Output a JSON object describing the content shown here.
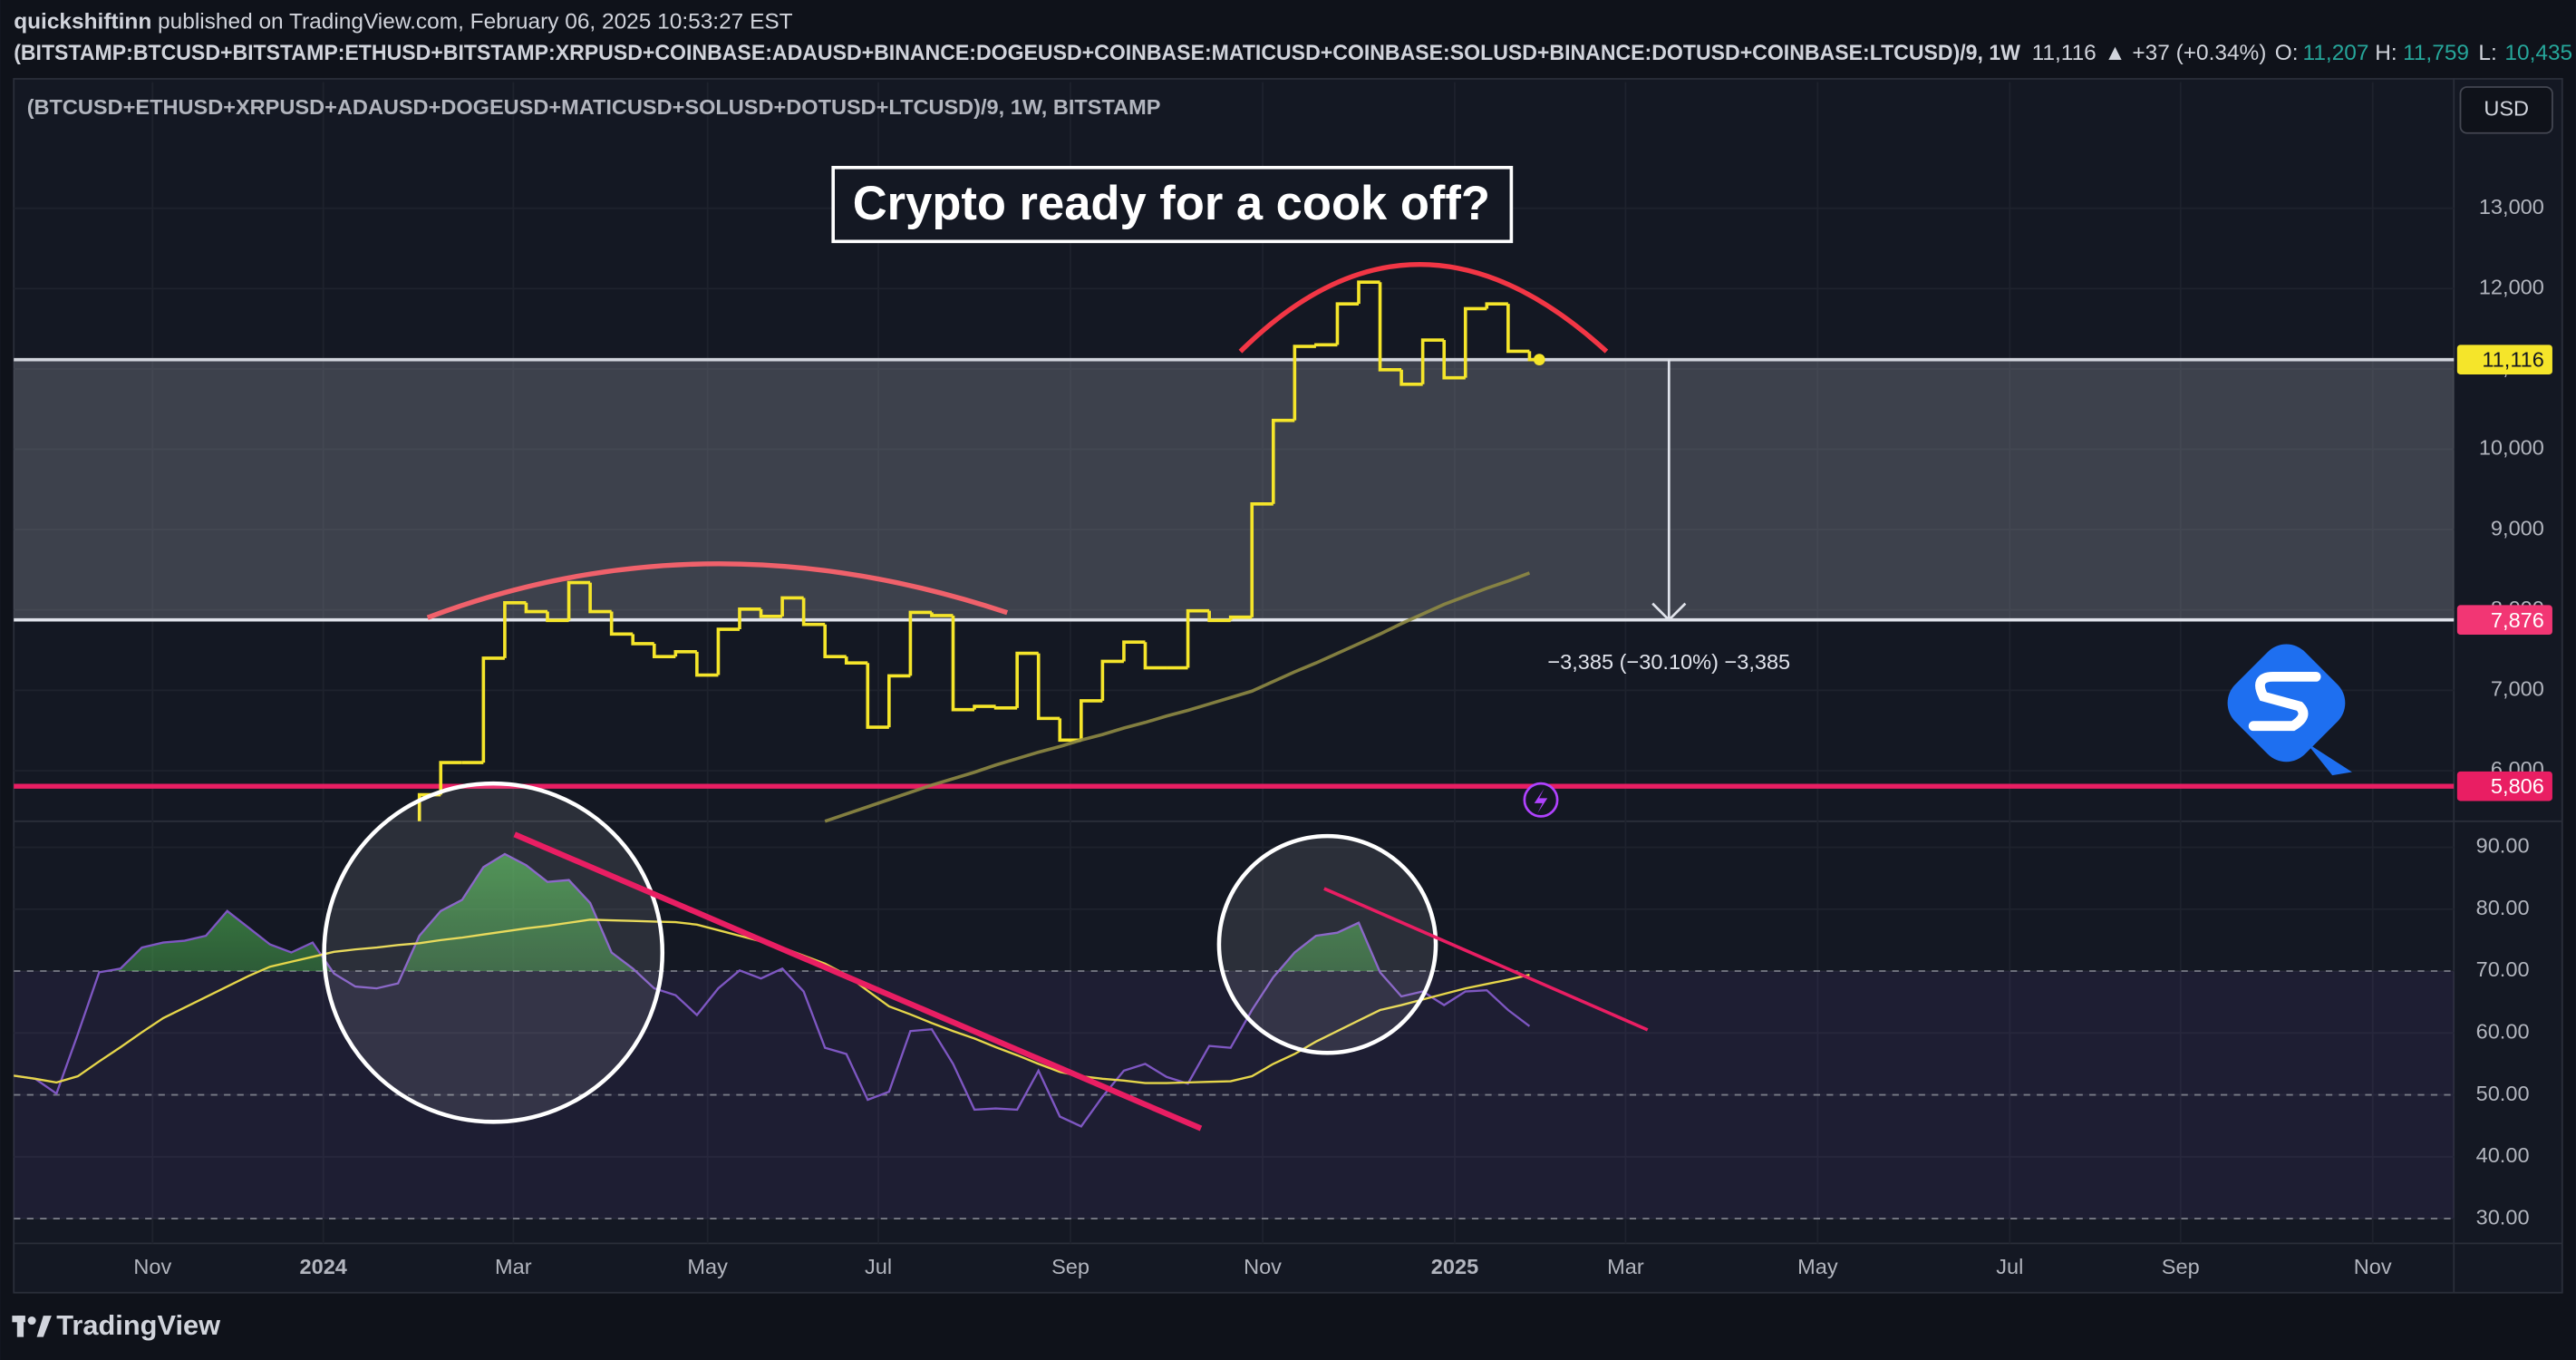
{
  "header": {
    "author": "quickshiftinn",
    "published": "published on TradingView.com, February 06, 2025 10:53:27 EST",
    "symbol": "(BITSTAMP:BTCUSD+BITSTAMP:ETHUSD+BITSTAMP:XRPUSD+COINBASE:ADAUSD+BINANCE:DOGEUSD+COINBASE:MATICUSD+COINBASE:SOLUSD+BINANCE:DOTUSD+COINBASE:LTCUSD)/9, 1W",
    "last": "11,116",
    "change": "▲ +37 (+0.34%)",
    "o_label": "O:",
    "o": "11,207",
    "h_label": "H:",
    "h": "11,759",
    "l_label": "L:",
    "l": "10,435"
  },
  "legend": "(BTCUSD+ETHUSD+XRPUSD+ADAUSD+DOGEUSD+MATICUSD+SOLUSD+DOTUSD+LTCUSD)/9, 1W, BITSTAMP",
  "currency": "USD",
  "brand": "TradingView",
  "chart_data": [
    {
      "type": "line",
      "step": true,
      "title": "Crypto ready for a cook off?",
      "xlim": [
        -19,
        95.3
      ],
      "xticks": [
        {
          "value": -12.5,
          "label": "Nov"
        },
        {
          "value": -4.5,
          "label": "2024"
        },
        {
          "value": 4.4,
          "label": "Mar"
        },
        {
          "value": 13.5,
          "label": "May"
        },
        {
          "value": 21.5,
          "label": "Jul"
        },
        {
          "value": 30.5,
          "label": "Sep"
        },
        {
          "value": 39.5,
          "label": "Nov"
        },
        {
          "value": 48.5,
          "label": "2025"
        },
        {
          "value": 56.5,
          "label": "Mar"
        },
        {
          "value": 65.5,
          "label": "May"
        },
        {
          "value": 74.5,
          "label": "Jul"
        },
        {
          "value": 82.5,
          "label": "Sep"
        },
        {
          "value": 91.5,
          "label": "Nov"
        }
      ],
      "ylim": [
        5370,
        14570
      ],
      "yticks": [
        {
          "value": 6000,
          "label": "6,000"
        },
        {
          "value": 7000,
          "label": "7,000"
        },
        {
          "value": 8000,
          "label": "8,000"
        },
        {
          "value": 9000,
          "label": "9,000"
        },
        {
          "value": 10000,
          "label": "10,000"
        },
        {
          "value": 11000,
          "label": "11,000"
        },
        {
          "value": 12000,
          "label": "12,000"
        },
        {
          "value": 13000,
          "label": "13,000"
        }
      ],
      "grid": true,
      "series": [
        {
          "color": "#f5e52a",
          "values": [
            5700,
            6100,
            6100,
            7400,
            8090,
            7980,
            7870,
            8340,
            7980,
            7700,
            7580,
            7420,
            7480,
            7190,
            7760,
            8010,
            7920,
            8150,
            7820,
            7420,
            7340,
            6540,
            7180,
            7970,
            7930,
            6760,
            6800,
            6780,
            7460,
            6650,
            6380,
            6870,
            7360,
            7600,
            7280,
            7280,
            7990,
            7870,
            7910,
            9320,
            10360,
            11280,
            11300,
            11810,
            12080,
            10990,
            10810,
            11360,
            10890,
            11750,
            11810,
            11220,
            11116
          ]
        },
        {
          "color": "#8e8a44",
          "values": [
            null,
            null,
            null,
            null,
            null,
            null,
            null,
            null,
            null,
            null,
            null,
            null,
            null,
            null,
            null,
            null,
            null,
            null,
            null,
            5370,
            5460,
            5550,
            5640,
            5730,
            5820,
            5900,
            5980,
            6070,
            6150,
            6230,
            6300,
            6380,
            6450,
            6530,
            6600,
            6680,
            6750,
            6830,
            6910,
            6990,
            7110,
            7230,
            7340,
            7460,
            7580,
            7700,
            7830,
            7950,
            8070,
            8170,
            8270,
            8360,
            8460
          ]
        }
      ],
      "last_value": {
        "value": 11116,
        "label": "11,116",
        "color": "#f5e52a"
      },
      "levels": [
        {
          "value": 7876,
          "label": "7,876",
          "color": "#f23674"
        },
        {
          "value": 5806,
          "label": "5,806",
          "color": "#e91e63"
        }
      ],
      "measure_label": "−3,385 (−30.10%) −3,385"
    },
    {
      "type": "line",
      "xlim": [
        0,
        114.3
      ],
      "ylim": [
        26,
        94.2
      ],
      "yticks": [
        {
          "value": 30,
          "label": "30.00"
        },
        {
          "value": 40,
          "label": "40.00"
        },
        {
          "value": 50,
          "label": "50.00"
        },
        {
          "value": 60,
          "label": "60.00"
        },
        {
          "value": 70,
          "label": "70.00"
        },
        {
          "value": 80,
          "label": "80.00"
        },
        {
          "value": 90,
          "label": "90.00"
        }
      ],
      "grid": true,
      "levels": [
        70,
        50,
        30
      ],
      "band": [
        30,
        70
      ],
      "series": [
        {
          "color": "#7e57c2",
          "values": [
            53.1,
            52.6,
            50.2,
            59.8,
            69.8,
            70.4,
            73.8,
            74.6,
            74.9,
            75.7,
            79.7,
            77.0,
            74.3,
            73.0,
            74.6,
            69.6,
            67.5,
            67.2,
            68.0,
            75.7,
            79.7,
            81.5,
            86.8,
            88.9,
            87.1,
            84.4,
            84.7,
            81.0,
            73.0,
            70.4,
            67.2,
            66.1,
            62.9,
            67.2,
            70.1,
            68.8,
            70.4,
            66.7,
            57.6,
            56.6,
            49.2,
            50.5,
            60.3,
            60.6,
            55.0,
            47.6,
            47.8,
            47.6,
            53.9,
            46.5,
            44.9,
            49.7,
            53.9,
            55.0,
            52.9,
            51.8,
            57.9,
            57.6,
            63.7,
            69.0,
            73.0,
            75.7,
            76.2,
            77.8,
            69.8,
            65.9,
            66.7,
            64.5,
            66.7,
            66.9,
            63.7,
            61.1
          ]
        },
        {
          "color": "#e6d64a",
          "values": [
            53.1,
            52.6,
            52.0,
            53.0,
            55.4,
            57.7,
            60.1,
            62.4,
            64.1,
            65.8,
            67.5,
            69.2,
            70.7,
            71.5,
            72.3,
            73.1,
            73.5,
            73.8,
            74.2,
            74.5,
            75.0,
            75.4,
            75.9,
            76.4,
            76.9,
            77.3,
            77.8,
            78.3,
            78.2,
            78.1,
            78.0,
            77.9,
            77.5,
            76.6,
            75.7,
            74.8,
            73.8,
            72.5,
            71.2,
            69.4,
            66.8,
            64.3,
            63.0,
            61.6,
            60.3,
            59.1,
            57.7,
            56.4,
            55.0,
            53.7,
            53.0,
            52.6,
            52.3,
            51.9,
            51.9,
            52.0,
            52.1,
            52.2,
            53.0,
            55.0,
            56.6,
            58.6,
            60.3,
            62.0,
            63.7,
            64.5,
            65.4,
            66.3,
            67.2,
            67.9,
            68.6,
            69.4
          ]
        }
      ]
    }
  ]
}
